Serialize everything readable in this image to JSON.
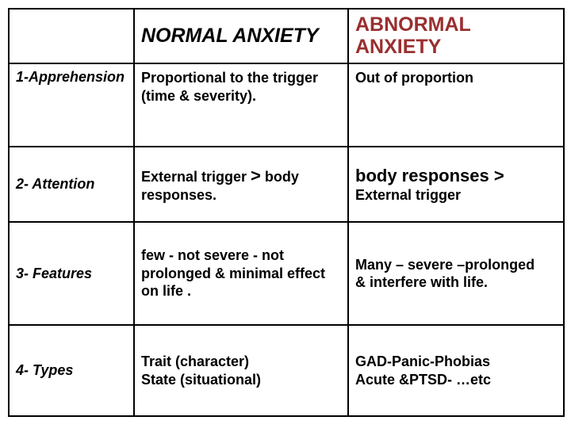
{
  "table": {
    "border_color": "#000000",
    "text_color": "#000000",
    "abnormal_color": "#9a2f2f",
    "background_color": "#ffffff",
    "columns": {
      "col1_width": 158,
      "col2_width": 270,
      "col3_width": 272
    },
    "header": {
      "col1": "",
      "col2": "NORMAL ANXIETY",
      "col3_line1": "ABNORMAL",
      "col3_line2": "ANXIETY",
      "fontsize": 25,
      "italic": true
    },
    "rows": [
      {
        "label": "1-Apprehension",
        "normal_line1": "Proportional to the trigger",
        "normal_line2": " (time & severity).",
        "abnormal": "Out of proportion"
      },
      {
        "label": "2- Attention",
        "normal_prefix": "External  trigger ",
        "normal_gt": ">",
        "normal_suffix": " body responses.",
        "abnormal_big": "body responses >",
        "abnormal_small": "External  trigger"
      },
      {
        "label": "3- Features",
        "normal": "few  - not severe - not prolonged & minimal effect on life .",
        "abnormal_line1": "Many – severe –prolonged",
        "abnormal_line2": " & interfere with life."
      },
      {
        "label": "4- Types",
        "normal_line1": "Trait (character)",
        "normal_line2": " State (situational)",
        "abnormal_line1": "GAD-Panic-Phobias",
        "abnormal_line2": "Acute &PTSD- …etc"
      }
    ],
    "fontsize_body": 18,
    "fontsize_big": 22
  }
}
